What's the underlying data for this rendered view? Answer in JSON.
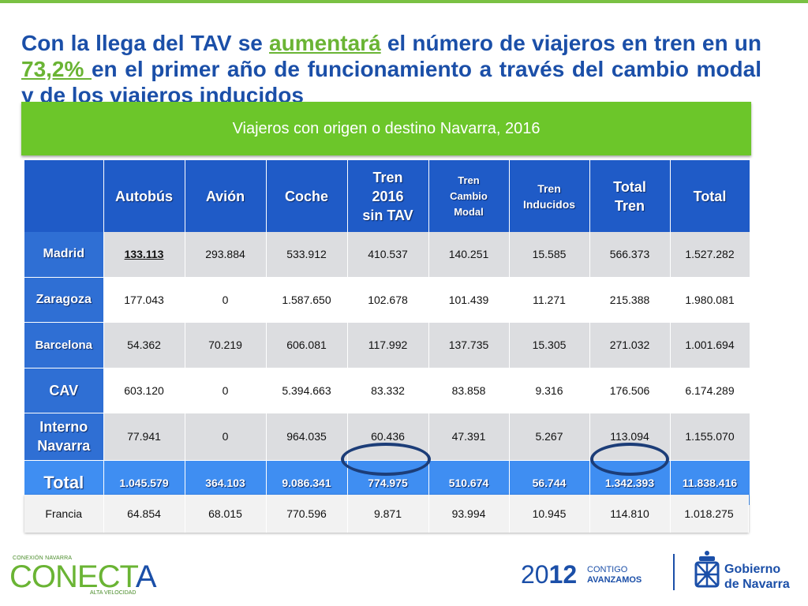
{
  "headline": {
    "part1": "Con la llega del TAV se ",
    "highlight1": "aumentará",
    "part2": " el número de viajeros en tren en un ",
    "highlight2": "73,2% ",
    "part3": "en el primer año de funcionamiento a través del cambio modal y de los viajeros inducidos"
  },
  "banner": {
    "title": "Viajeros con origen o destino Navarra, 2016"
  },
  "table": {
    "columns": [
      "Autobús",
      "Avión",
      "Coche",
      "Tren 2016 sin TAV",
      "Tren Cambio Modal",
      "Tren Inducidos",
      "Total Tren",
      "Total"
    ],
    "column_lines": {
      "tren2016": [
        "Tren",
        "2016",
        "sin TAV"
      ],
      "cambio": [
        "Tren",
        "Cambio",
        "Modal"
      ],
      "inducidos": [
        "Tren",
        "Inducidos"
      ],
      "totaltren": [
        "Total",
        "Tren"
      ],
      "interno": [
        "Interno",
        "Navarra"
      ]
    },
    "rows": [
      {
        "label": "Madrid",
        "values": [
          "133.113",
          "293.884",
          "533.912",
          "410.537",
          "140.251",
          "15.585",
          "566.373",
          "1.527.282"
        ]
      },
      {
        "label": "Zaragoza",
        "values": [
          "177.043",
          "0",
          "1.587.650",
          "102.678",
          "101.439",
          "11.271",
          "215.388",
          "1.980.081"
        ]
      },
      {
        "label": "Barcelona",
        "values": [
          "54.362",
          "70.219",
          "606.081",
          "117.992",
          "137.735",
          "15.305",
          "271.032",
          "1.001.694"
        ]
      },
      {
        "label": "CAV",
        "values": [
          "603.120",
          "0",
          "5.394.663",
          "83.332",
          "83.858",
          "9.316",
          "176.506",
          "6.174.289"
        ]
      },
      {
        "label": "Interno Navarra",
        "values": [
          "77.941",
          "0",
          "964.035",
          "60.436",
          "47.391",
          "5.267",
          "113.094",
          "1.155.070"
        ]
      }
    ],
    "total": {
      "label": "Total",
      "values": [
        "1.045.579",
        "364.103",
        "9.086.341",
        "774.975",
        "510.674",
        "56.744",
        "1.342.393",
        "11.838.416"
      ]
    },
    "francia": {
      "label": "Francia",
      "values": [
        "64.854",
        "68.015",
        "770.596",
        "9.871",
        "93.994",
        "10.945",
        "114.810",
        "1.018.275"
      ]
    }
  },
  "highlight_color": "#1c3d78",
  "footer": {
    "conecta_top": "CONEXIÓN NAVARRA",
    "conecta_main_green": "CONECT",
    "conecta_main_blue": "A",
    "conecta_bottom": "ALTA VELOCIDAD",
    "year_thin": "20",
    "year_bold": "12",
    "slogan_line1": "CONTIGO",
    "slogan_line2": "AVANZAMOS",
    "gobierno_line1": "Gobierno",
    "gobierno_line2": "de Navarra"
  }
}
